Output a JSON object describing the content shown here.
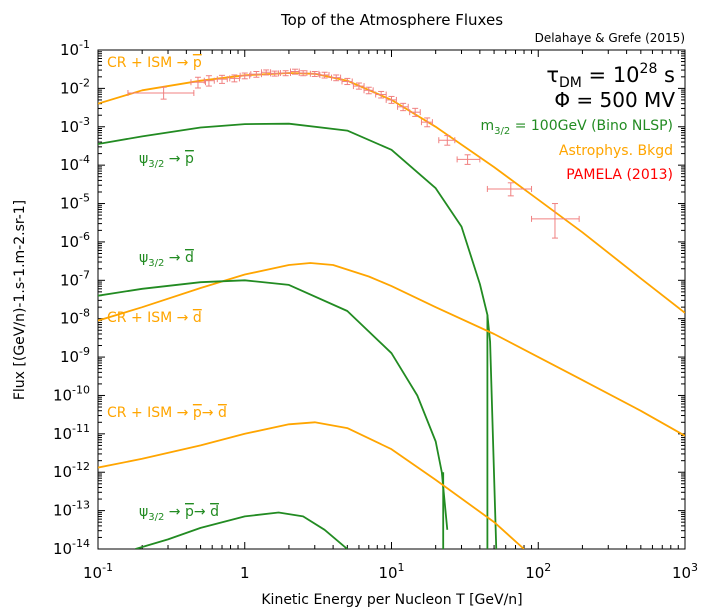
{
  "chart_data": {
    "type": "line",
    "title": "Top of the Atmosphere Fluxes",
    "subtitle": "Delahaye & Grefe (2015)",
    "xlabel": "Kinetic Energy per Nucleon T [GeV/n]",
    "ylabel": "Flux [(GeV/n)-1.s-1.m-2.sr-1]",
    "xscale": "log",
    "yscale": "log",
    "xlim": [
      0.1,
      1000
    ],
    "ylim": [
      1e-14,
      0.1
    ],
    "x_tick_labels": [
      {
        "value": 0.1,
        "base": "10",
        "exp": "-1"
      },
      {
        "value": 1,
        "base": "1",
        "exp": ""
      },
      {
        "value": 10,
        "base": "10",
        "exp": "1"
      },
      {
        "value": 100,
        "base": "10",
        "exp": "2"
      },
      {
        "value": 1000,
        "base": "10",
        "exp": "3"
      }
    ],
    "y_tick_labels": [
      {
        "value": -1,
        "base": "10",
        "exp": "-1"
      },
      {
        "value": -2,
        "base": "10",
        "exp": "-2"
      },
      {
        "value": -3,
        "base": "10",
        "exp": "-3"
      },
      {
        "value": -4,
        "base": "10",
        "exp": "-4"
      },
      {
        "value": -5,
        "base": "10",
        "exp": "-5"
      },
      {
        "value": -6,
        "base": "10",
        "exp": "-6"
      },
      {
        "value": -7,
        "base": "10",
        "exp": "-7"
      },
      {
        "value": -8,
        "base": "10",
        "exp": "-8"
      },
      {
        "value": -9,
        "base": "10",
        "exp": "-9"
      },
      {
        "value": -10,
        "base": "10",
        "exp": "-10"
      },
      {
        "value": -11,
        "base": "10",
        "exp": "-11"
      },
      {
        "value": -12,
        "base": "10",
        "exp": "-12"
      },
      {
        "value": -13,
        "base": "10",
        "exp": "-13"
      },
      {
        "value": -14,
        "base": "10",
        "exp": "-14"
      }
    ],
    "legend": {
      "tau": {
        "main": "τ",
        "sub": "DM",
        "mid": " = 10",
        "sup": "28",
        "end": " s"
      },
      "phi": "Φ = 500 MV",
      "mass": {
        "pre": "m",
        "sub": "3/2",
        "post": " = 100GeV (Bino NLSP)"
      },
      "astro": "Astrophys. Bkgd",
      "pamela": "PAMELA (2013)",
      "placement": "top-right"
    },
    "annotations": {
      "cr_ism_pbar": {
        "text": "CR + ISM → ",
        "over": "p"
      },
      "psi_pbar": {
        "pre": "ψ",
        "sub": "3/2",
        "post": " → ",
        "over": "p"
      },
      "psi_dbar": {
        "pre": "ψ",
        "sub": "3/2",
        "post": " → ",
        "over": "d"
      },
      "cr_ism_dbar": {
        "text": "CR + ISM → ",
        "over": "d"
      },
      "cr_ism_pbar_dbar": {
        "text": "CR + ISM → ",
        "over1": "p",
        "mid": "→ ",
        "over2": "d"
      },
      "psi_pbar_dbar": {
        "pre": "ψ",
        "sub": "3/2",
        "post": " → ",
        "over1": "p",
        "mid": "→ ",
        "over2": "d"
      }
    },
    "colors": {
      "astro": "#ffa500",
      "dm": "#228b22",
      "pamela": "#ff0000",
      "pamela_points": "#f08080"
    },
    "series": [
      {
        "kind": "astro",
        "x": [
          0.1,
          0.2,
          0.5,
          1,
          2,
          3,
          5,
          10,
          20,
          50,
          100,
          200,
          500,
          1000
        ],
        "y": [
          -2.4,
          -2.05,
          -1.8,
          -1.66,
          -1.6,
          -1.62,
          -1.8,
          -2.3,
          -3.0,
          -4.05,
          -4.9,
          -5.75,
          -6.95,
          -7.85
        ]
      },
      {
        "kind": "dm",
        "x": [
          0.1,
          0.2,
          0.5,
          1,
          2,
          5,
          10,
          20,
          30,
          40,
          45,
          47,
          52
        ],
        "y": [
          -3.45,
          -3.25,
          -3.02,
          -2.93,
          -2.92,
          -3.1,
          -3.6,
          -4.6,
          -5.6,
          -7.1,
          -7.9,
          -8.6,
          -14.3
        ]
      },
      {
        "kind": "dm",
        "x": [
          45.0,
          45.0
        ],
        "y": [
          -7.9,
          -14.0
        ]
      },
      {
        "kind": "astro",
        "x": [
          0.1,
          0.2,
          0.5,
          1,
          2,
          2.8,
          4,
          7,
          10,
          20,
          50,
          100,
          200,
          500,
          1000
        ],
        "y": [
          -8.05,
          -7.7,
          -7.2,
          -6.85,
          -6.6,
          -6.55,
          -6.6,
          -6.9,
          -7.15,
          -7.7,
          -8.4,
          -9.0,
          -9.6,
          -10.4,
          -11.05
        ]
      },
      {
        "kind": "dm",
        "x": [
          0.1,
          0.2,
          0.5,
          1,
          2,
          5,
          10,
          15,
          20,
          22,
          24
        ],
        "y": [
          -7.4,
          -7.22,
          -7.05,
          -7.0,
          -7.12,
          -7.8,
          -8.9,
          -10.0,
          -11.2,
          -12.0,
          -13.5
        ]
      },
      {
        "kind": "dm",
        "x": [
          22.5,
          22.5
        ],
        "y": [
          -12.0,
          -14.0
        ]
      },
      {
        "kind": "astro",
        "x": [
          0.1,
          0.2,
          0.5,
          1,
          2,
          3,
          5,
          10,
          20,
          50,
          80
        ],
        "y": [
          -11.88,
          -11.65,
          -11.3,
          -11.0,
          -10.75,
          -10.7,
          -10.85,
          -11.4,
          -12.2,
          -13.3,
          -14.0
        ]
      },
      {
        "kind": "dm",
        "x": [
          0.18,
          0.3,
          0.5,
          1,
          1.7,
          2.5,
          3.5,
          5
        ],
        "y": [
          -14.0,
          -13.75,
          -13.45,
          -13.15,
          -13.05,
          -13.15,
          -13.5,
          -14.0
        ]
      }
    ],
    "pamela_points": [
      {
        "x": 0.28,
        "y": -2.12,
        "xlo": 0.16,
        "xhi": 0.45,
        "ylo": -2.28,
        "yhi": -1.97
      },
      {
        "x": 0.48,
        "y": -1.84,
        "xlo": 0.43,
        "xhi": 0.54,
        "ylo": -1.99,
        "yhi": -1.71
      },
      {
        "x": 0.57,
        "y": -1.8,
        "xlo": 0.53,
        "xhi": 0.62,
        "ylo": -1.94,
        "yhi": -1.67
      },
      {
        "x": 0.7,
        "y": -1.76,
        "xlo": 0.65,
        "xhi": 0.76,
        "ylo": -1.87,
        "yhi": -1.66
      },
      {
        "x": 0.85,
        "y": -1.74,
        "xlo": 0.79,
        "xhi": 0.92,
        "ylo": -1.83,
        "yhi": -1.65
      },
      {
        "x": 1.0,
        "y": -1.67,
        "xlo": 0.93,
        "xhi": 1.08,
        "ylo": -1.75,
        "yhi": -1.6
      },
      {
        "x": 1.2,
        "y": -1.63,
        "xlo": 1.1,
        "xhi": 1.3,
        "ylo": -1.71,
        "yhi": -1.56
      },
      {
        "x": 1.4,
        "y": -1.58,
        "xlo": 1.3,
        "xhi": 1.5,
        "ylo": -1.65,
        "yhi": -1.52
      },
      {
        "x": 1.6,
        "y": -1.61,
        "xlo": 1.5,
        "xhi": 1.7,
        "ylo": -1.68,
        "yhi": -1.55
      },
      {
        "x": 1.9,
        "y": -1.6,
        "xlo": 1.75,
        "xhi": 2.05,
        "ylo": -1.67,
        "yhi": -1.54
      },
      {
        "x": 2.2,
        "y": -1.56,
        "xlo": 2.05,
        "xhi": 2.35,
        "ylo": -1.63,
        "yhi": -1.5
      },
      {
        "x": 2.5,
        "y": -1.6,
        "xlo": 2.35,
        "xhi": 2.65,
        "ylo": -1.67,
        "yhi": -1.54
      },
      {
        "x": 3.0,
        "y": -1.62,
        "xlo": 2.8,
        "xhi": 3.2,
        "ylo": -1.69,
        "yhi": -1.56
      },
      {
        "x": 3.5,
        "y": -1.65,
        "xlo": 3.25,
        "xhi": 3.75,
        "ylo": -1.73,
        "yhi": -1.58
      },
      {
        "x": 4.2,
        "y": -1.72,
        "xlo": 3.9,
        "xhi": 4.5,
        "ylo": -1.8,
        "yhi": -1.65
      },
      {
        "x": 5.0,
        "y": -1.82,
        "xlo": 4.6,
        "xhi": 5.4,
        "ylo": -1.9,
        "yhi": -1.74
      },
      {
        "x": 6.0,
        "y": -1.94,
        "xlo": 5.5,
        "xhi": 6.5,
        "ylo": -2.02,
        "yhi": -1.86
      },
      {
        "x": 7.0,
        "y": -2.05,
        "xlo": 6.5,
        "xhi": 7.5,
        "ylo": -2.14,
        "yhi": -1.97
      },
      {
        "x": 8.5,
        "y": -2.16,
        "xlo": 7.8,
        "xhi": 9.2,
        "ylo": -2.25,
        "yhi": -2.08
      },
      {
        "x": 10.0,
        "y": -2.3,
        "xlo": 9.2,
        "xhi": 10.8,
        "ylo": -2.39,
        "yhi": -2.21
      },
      {
        "x": 12.0,
        "y": -2.48,
        "xlo": 11.0,
        "xhi": 13.0,
        "ylo": -2.58,
        "yhi": -2.39
      },
      {
        "x": 14.5,
        "y": -2.62,
        "xlo": 13.3,
        "xhi": 15.7,
        "ylo": -2.73,
        "yhi": -2.52
      },
      {
        "x": 17.5,
        "y": -2.88,
        "xlo": 16.0,
        "xhi": 19.0,
        "ylo": -3.0,
        "yhi": -2.77
      },
      {
        "x": 24.0,
        "y": -3.35,
        "xlo": 21.0,
        "xhi": 27.0,
        "ylo": -3.48,
        "yhi": -3.23
      },
      {
        "x": 33.0,
        "y": -3.85,
        "xlo": 28.0,
        "xhi": 40.0,
        "ylo": -3.98,
        "yhi": -3.73
      },
      {
        "x": 65.0,
        "y": -4.62,
        "xlo": 45.0,
        "xhi": 90.0,
        "ylo": -4.8,
        "yhi": -4.46
      },
      {
        "x": 130.0,
        "y": -5.4,
        "xlo": 90.0,
        "xhi": 190.0,
        "ylo": -5.9,
        "yhi": -5.0
      }
    ]
  }
}
